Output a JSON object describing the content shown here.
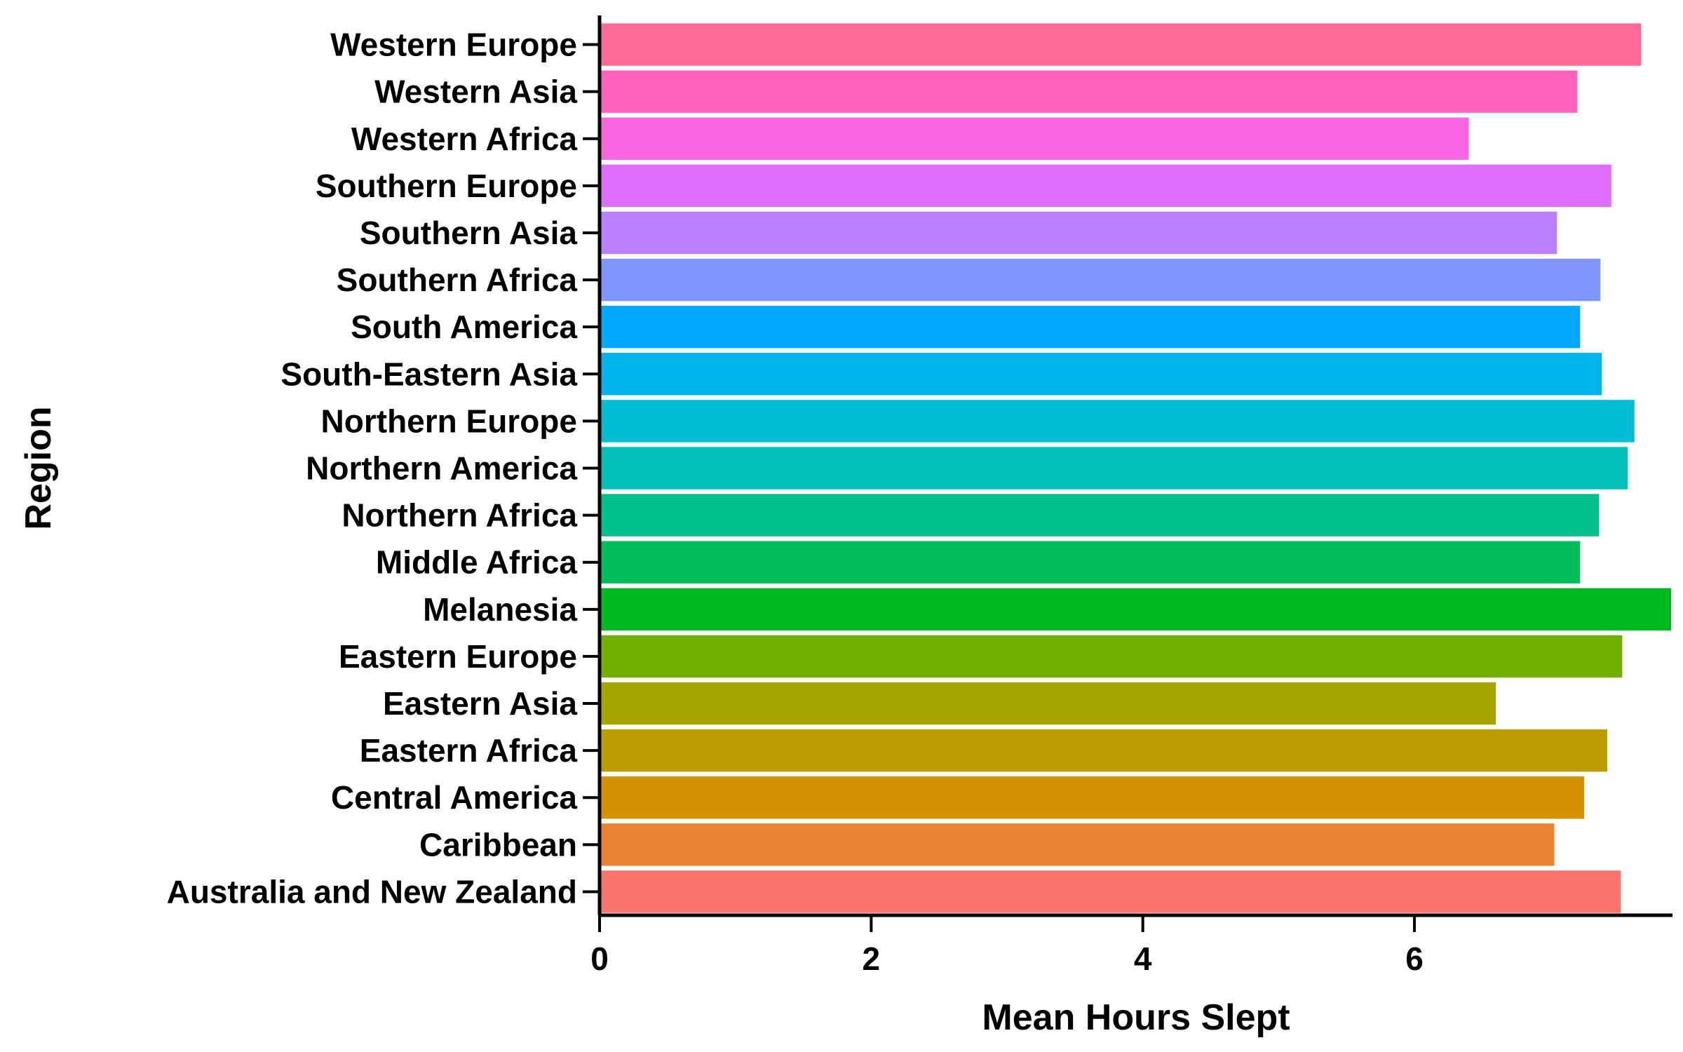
{
  "chart_data": {
    "type": "bar",
    "orientation": "horizontal",
    "xlabel": "Mean Hours Slept",
    "ylabel": "Region",
    "xlim": [
      0,
      7.9
    ],
    "xticks": [
      0,
      2,
      4,
      6
    ],
    "grid": false,
    "legend": "none",
    "bars": [
      {
        "category": "Western Europe",
        "value": 7.67,
        "color": "#FF6C9A"
      },
      {
        "category": "Western Asia",
        "value": 7.2,
        "color": "#FF63C0"
      },
      {
        "category": "Western Africa",
        "value": 6.4,
        "color": "#F866E3"
      },
      {
        "category": "Southern Europe",
        "value": 7.45,
        "color": "#E16EFA"
      },
      {
        "category": "Southern Asia",
        "value": 7.05,
        "color": "#BB80FF"
      },
      {
        "category": "Southern Africa",
        "value": 7.37,
        "color": "#7F97FF"
      },
      {
        "category": "South America",
        "value": 7.22,
        "color": "#00A8FF"
      },
      {
        "category": "South-Eastern Asia",
        "value": 7.38,
        "color": "#00B3EB"
      },
      {
        "category": "Northern Europe",
        "value": 7.62,
        "color": "#00BDD4"
      },
      {
        "category": "Northern America",
        "value": 7.57,
        "color": "#00C0B7"
      },
      {
        "category": "Northern Africa",
        "value": 7.36,
        "color": "#00C08F"
      },
      {
        "category": "Middle Africa",
        "value": 7.22,
        "color": "#00BC5C"
      },
      {
        "category": "Melanesia",
        "value": 7.89,
        "color": "#00B81F"
      },
      {
        "category": "Eastern Europe",
        "value": 7.53,
        "color": "#72B000"
      },
      {
        "category": "Eastern Asia",
        "value": 6.6,
        "color": "#A3A500"
      },
      {
        "category": "Eastern Africa",
        "value": 7.42,
        "color": "#BD9C00"
      },
      {
        "category": "Central America",
        "value": 7.25,
        "color": "#D49200"
      },
      {
        "category": "Caribbean",
        "value": 7.03,
        "color": "#EA8331"
      },
      {
        "category": "Australia and New Zealand",
        "value": 7.52,
        "color": "#F8766D"
      }
    ]
  }
}
